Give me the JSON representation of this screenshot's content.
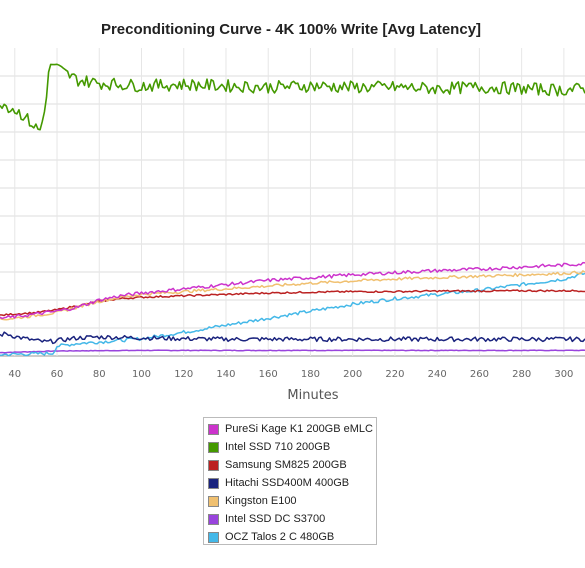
{
  "chart_data": {
    "type": "line",
    "title": "Preconditioning Curve - 4K 100% Write [Avg Latency]",
    "xlabel": "Minutes",
    "ylabel": "",
    "x_ticks": [
      "40",
      "60",
      "80",
      "100",
      "120",
      "140",
      "160",
      "180",
      "200",
      "220",
      "240",
      "260",
      "280",
      "300"
    ],
    "xlim": [
      33,
      310
    ],
    "ylim": [
      0,
      11
    ],
    "grid": true,
    "legend_position": "bottom-center",
    "series": [
      {
        "name": "PureSi Kage K1 200GB eMLC",
        "color": "#cc33cc",
        "x": [
          33,
          40,
          50,
          60,
          70,
          80,
          90,
          100,
          120,
          140,
          160,
          180,
          200,
          220,
          240,
          260,
          280,
          300,
          310
        ],
        "y": [
          1.35,
          1.4,
          1.5,
          1.6,
          1.75,
          2.0,
          2.15,
          2.25,
          2.4,
          2.55,
          2.7,
          2.8,
          2.9,
          2.98,
          3.05,
          3.1,
          3.18,
          3.25,
          3.3
        ]
      },
      {
        "name": "Intel SSD 710 200GB",
        "color": "#449900",
        "x": [
          33,
          36,
          40,
          44,
          48,
          50,
          52,
          54,
          56,
          58,
          60,
          65,
          70,
          80,
          100,
          120,
          140,
          160,
          180,
          200,
          220,
          240,
          260,
          280,
          300,
          310
        ],
        "y": [
          9.1,
          8.95,
          8.8,
          8.6,
          8.3,
          8.15,
          8.05,
          8.7,
          10.1,
          10.45,
          10.3,
          10.05,
          9.85,
          9.75,
          9.65,
          9.7,
          9.65,
          9.6,
          9.65,
          9.6,
          9.6,
          9.55,
          9.6,
          9.55,
          9.5,
          9.55
        ]
      },
      {
        "name": "Samsung SM825 200GB",
        "color": "#bb2222",
        "x": [
          33,
          40,
          50,
          60,
          70,
          80,
          90,
          100,
          120,
          140,
          160,
          180,
          200,
          220,
          240,
          260,
          280,
          300,
          310
        ],
        "y": [
          1.45,
          1.5,
          1.55,
          1.65,
          1.8,
          1.95,
          2.05,
          2.1,
          2.15,
          2.2,
          2.25,
          2.28,
          2.3,
          2.3,
          2.32,
          2.32,
          2.33,
          2.33,
          2.33
        ]
      },
      {
        "name": "Hitachi SSD400M 400GB",
        "color": "#1a237e",
        "x": [
          33,
          36,
          40,
          45,
          50,
          55,
          60,
          70,
          80,
          100,
          120,
          140,
          160,
          180,
          200,
          220,
          240,
          260,
          280,
          300,
          310
        ],
        "y": [
          0.75,
          0.8,
          0.7,
          0.62,
          0.55,
          0.5,
          0.55,
          0.65,
          0.68,
          0.65,
          0.62,
          0.6,
          0.6,
          0.6,
          0.6,
          0.6,
          0.6,
          0.6,
          0.6,
          0.6,
          0.6
        ]
      },
      {
        "name": "Kingston E100",
        "color": "#f0c070",
        "x": [
          33,
          40,
          50,
          60,
          70,
          80,
          90,
          100,
          120,
          140,
          160,
          180,
          200,
          220,
          240,
          260,
          280,
          300,
          310
        ],
        "y": [
          1.3,
          1.35,
          1.45,
          1.55,
          1.75,
          1.95,
          2.1,
          2.2,
          2.3,
          2.4,
          2.5,
          2.6,
          2.68,
          2.75,
          2.8,
          2.85,
          2.9,
          2.95,
          3.0
        ]
      },
      {
        "name": "Intel SSD DC S3700",
        "color": "#9944dd",
        "x": [
          33,
          60,
          100,
          150,
          200,
          250,
          310
        ],
        "y": [
          0.12,
          0.18,
          0.2,
          0.2,
          0.2,
          0.2,
          0.2
        ]
      },
      {
        "name": "OCZ Talos 2 C 480GB",
        "color": "#44b8e8",
        "x": [
          33,
          50,
          58,
          60,
          70,
          80,
          100,
          120,
          140,
          160,
          180,
          200,
          220,
          240,
          260,
          280,
          300,
          310
        ],
        "y": [
          0.05,
          0.08,
          0.1,
          0.35,
          0.45,
          0.5,
          0.62,
          0.85,
          1.1,
          1.35,
          1.6,
          1.85,
          2.05,
          2.2,
          2.35,
          2.55,
          2.75,
          2.95
        ]
      }
    ]
  }
}
